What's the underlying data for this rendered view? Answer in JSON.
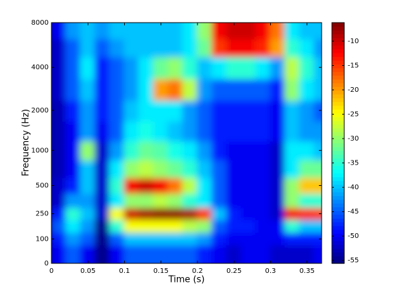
{
  "chart_data": {
    "type": "heatmap",
    "xlabel": "Time (s)",
    "ylabel": "Frequency (Hz)",
    "x": [
      0.01,
      0.03,
      0.05,
      0.07,
      0.09,
      0.11,
      0.13,
      0.15,
      0.17,
      0.19,
      0.21,
      0.23,
      0.25,
      0.27,
      0.29,
      0.31,
      0.33,
      0.35,
      0.37
    ],
    "y": [
      50,
      100,
      175,
      250,
      350,
      500,
      700,
      1000,
      1400,
      2000,
      2800,
      4000,
      5600,
      7000
    ],
    "z": [
      [
        -50,
        -45,
        -50,
        -55,
        -50,
        -45,
        -45,
        -45,
        -45,
        -45,
        -48,
        -50,
        -52,
        -50,
        -50,
        -52,
        -52,
        -52,
        -50
      ],
      [
        -48,
        -42,
        -45,
        -55,
        -45,
        -40,
        -40,
        -40,
        -40,
        -40,
        -42,
        -48,
        -50,
        -50,
        -50,
        -50,
        -48,
        -48,
        -48
      ],
      [
        -45,
        -38,
        -42,
        -55,
        -35,
        -25,
        -25,
        -25,
        -25,
        -28,
        -30,
        -45,
        -48,
        -48,
        -50,
        -50,
        -35,
        -40,
        -40
      ],
      [
        -48,
        -35,
        -40,
        -52,
        -25,
        -10,
        -8,
        -7,
        -7,
        -8,
        -15,
        -40,
        -48,
        -50,
        -50,
        -52,
        -12,
        -14,
        -15
      ],
      [
        -52,
        -42,
        -42,
        -52,
        -38,
        -30,
        -30,
        -28,
        -30,
        -35,
        -38,
        -45,
        -50,
        -50,
        -50,
        -52,
        -30,
        -35,
        -35
      ],
      [
        -52,
        -48,
        -40,
        -52,
        -35,
        -12,
        -10,
        -12,
        -18,
        -28,
        -38,
        -45,
        -50,
        -50,
        -50,
        -52,
        -30,
        -22,
        -22
      ],
      [
        -53,
        -50,
        -40,
        -52,
        -38,
        -30,
        -28,
        -30,
        -32,
        -35,
        -40,
        -45,
        -50,
        -50,
        -50,
        -52,
        -38,
        -32,
        -32
      ],
      [
        -53,
        -50,
        -30,
        -52,
        -42,
        -35,
        -32,
        -33,
        -36,
        -38,
        -42,
        -48,
        -50,
        -50,
        -50,
        -52,
        -38,
        -38,
        -40
      ],
      [
        -53,
        -50,
        -42,
        -50,
        -45,
        -38,
        -36,
        -38,
        -40,
        -42,
        -45,
        -48,
        -48,
        -48,
        -48,
        -50,
        -40,
        -42,
        -42
      ],
      [
        -53,
        -48,
        -42,
        -48,
        -45,
        -40,
        -38,
        -38,
        -38,
        -42,
        -45,
        -48,
        -48,
        -48,
        -48,
        -50,
        -40,
        -42,
        -45
      ],
      [
        -52,
        -45,
        -40,
        -48,
        -45,
        -42,
        -38,
        -20,
        -18,
        -28,
        -42,
        -45,
        -45,
        -45,
        -45,
        -48,
        -30,
        -38,
        -40
      ],
      [
        -52,
        -45,
        -38,
        -48,
        -45,
        -42,
        -38,
        -32,
        -30,
        -35,
        -40,
        -38,
        -35,
        -35,
        -38,
        -42,
        -28,
        -35,
        -40
      ],
      [
        -52,
        -45,
        -40,
        -45,
        -42,
        -40,
        -40,
        -40,
        -40,
        -38,
        -32,
        -15,
        -12,
        -12,
        -14,
        -20,
        -35,
        -38,
        -42
      ],
      [
        -50,
        -42,
        -40,
        -42,
        -40,
        -40,
        -40,
        -40,
        -40,
        -38,
        -30,
        -12,
        -10,
        -10,
        -12,
        -18,
        -38,
        -40,
        -40
      ]
    ],
    "xlim": [
      0,
      0.37
    ],
    "xticks": [
      0,
      0.05,
      0.1,
      0.15,
      0.2,
      0.25,
      0.3,
      0.35
    ],
    "ylim": [
      0,
      8000
    ],
    "yticks": [
      0,
      100,
      250,
      500,
      1000,
      2000,
      4000,
      8000
    ],
    "yscale": "erb",
    "colormap": "jet",
    "clim": [
      -55.6,
      -6.2
    ],
    "cticks": [
      -10,
      -15,
      -20,
      -25,
      -30,
      -35,
      -40,
      -45,
      -50,
      -55
    ]
  }
}
